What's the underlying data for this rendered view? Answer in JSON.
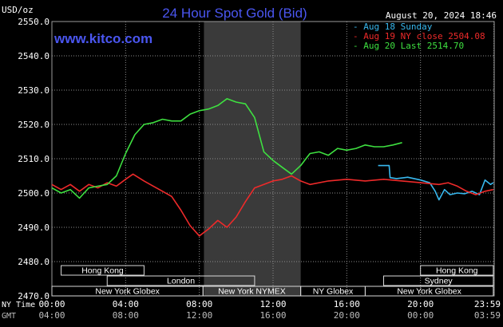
{
  "header": {
    "units": "USD/oz",
    "title": "24 Hour Spot Gold (Bid)",
    "datetime": "August 20, 2024 18:46",
    "watermark": "www.kitco.com"
  },
  "colors": {
    "background": "#000000",
    "grid": "#8c8c8c",
    "title": "#4a56f0",
    "watermark": "#4a56f0",
    "aug18": "#38b8ee",
    "aug19": "#ee2a2a",
    "aug20": "#3ee040",
    "panel_fill": "#ececec",
    "highlight": "#3a3a3a"
  },
  "chart_data": {
    "type": "line",
    "title": "24 Hour Spot Gold (Bid)",
    "ylabel": "USD/oz",
    "ylim": [
      2470,
      2550
    ],
    "yticks": [
      "2470.0",
      "2480.0",
      "2490.0",
      "2500.0",
      "2510.0",
      "2520.0",
      "2530.0",
      "2540.0",
      "2550.0"
    ],
    "xlim": [
      0,
      24
    ],
    "highlight_range": [
      8.25,
      13.5
    ],
    "x_rows": [
      {
        "label": "NY Time",
        "ticks": [
          "00:00",
          "04:00",
          "08:00",
          "12:00",
          "16:00",
          "20:00",
          "23:59"
        ]
      },
      {
        "label": "GMT",
        "ticks": [
          "04:00",
          "08:00",
          "12:00",
          "16:00",
          "20:00",
          "00:00",
          "03:59"
        ]
      }
    ],
    "sessions": [
      {
        "name": "Hong Kong",
        "start": 0.5,
        "end": 5.0,
        "row": 0
      },
      {
        "name": "Hong Kong",
        "start": 20.0,
        "end": 23.95,
        "row": 0
      },
      {
        "name": "London",
        "start": 3.0,
        "end": 11.0,
        "row": 1
      },
      {
        "name": "Sydney",
        "start": 18.0,
        "end": 23.95,
        "row": 1
      },
      {
        "name": "New York Globex",
        "start": 0.0,
        "end": 8.2,
        "row": 2
      },
      {
        "name": "New York NYMEX",
        "start": 8.2,
        "end": 13.5,
        "row": 2
      },
      {
        "name": "NY Globex",
        "start": 13.5,
        "end": 17.0,
        "row": 2
      },
      {
        "name": "New York Globex",
        "start": 17.0,
        "end": 23.95,
        "row": 2
      }
    ],
    "series": [
      {
        "name": "Aug 18 Sunday",
        "color": "#38b8ee",
        "x": [
          17.7,
          18.3,
          18.35,
          18.7,
          19.3,
          20.0,
          20.5,
          20.8,
          21.0,
          21.3,
          21.6,
          22.0,
          22.4,
          22.8,
          23.2,
          23.5,
          23.8,
          23.95
        ],
        "y": [
          2508.0,
          2508.0,
          2504.5,
          2504.2,
          2504.6,
          2503.8,
          2503.0,
          2500.5,
          2498.0,
          2501.0,
          2499.5,
          2500.0,
          2499.8,
          2500.5,
          2499.5,
          2503.8,
          2502.5,
          2503.0
        ]
      },
      {
        "name": "Aug 19 NY close 2504.08",
        "color": "#ee2a2a",
        "x": [
          0,
          0.5,
          1,
          1.5,
          2,
          2.5,
          3,
          3.5,
          4,
          4.4,
          5,
          5.5,
          6,
          6.5,
          7,
          7.5,
          8,
          8.5,
          9,
          9.5,
          10,
          10.5,
          11,
          11.5,
          12,
          12.5,
          13,
          13.5,
          14,
          15,
          16,
          17,
          18,
          19,
          20,
          21,
          21.5,
          22,
          22.5,
          23,
          23.5,
          23.95
        ],
        "y": [
          2502.5,
          2501.0,
          2502.5,
          2500.5,
          2502.5,
          2501.5,
          2503.0,
          2502.0,
          2504.0,
          2505.5,
          2503.5,
          2502.0,
          2500.5,
          2499.0,
          2495.0,
          2490.5,
          2487.5,
          2489.5,
          2492.0,
          2490.0,
          2493.0,
          2497.5,
          2501.5,
          2502.5,
          2503.5,
          2504.0,
          2505.0,
          2503.5,
          2502.5,
          2503.5,
          2504.0,
          2503.5,
          2504.0,
          2503.5,
          2503.0,
          2502.5,
          2503.0,
          2502.0,
          2500.5,
          2499.5,
          2500.5,
          2501.0
        ]
      },
      {
        "name": "Aug 20 Last 2514.70",
        "color": "#3ee040",
        "x": [
          0,
          0.5,
          1,
          1.5,
          2,
          2.5,
          3,
          3.5,
          4,
          4.5,
          5,
          5.5,
          6,
          6.5,
          7,
          7.5,
          8,
          8.5,
          9,
          9.5,
          10,
          10.5,
          11,
          11.5,
          12,
          12.5,
          13,
          13.5,
          14,
          14.5,
          15,
          15.5,
          16,
          16.5,
          17,
          17.5,
          18,
          18.5,
          19
        ],
        "y": [
          2501.5,
          2500.0,
          2501.0,
          2498.5,
          2501.5,
          2502.0,
          2502.5,
          2505.0,
          2511.5,
          2517.0,
          2520.0,
          2520.5,
          2521.5,
          2521.0,
          2521.0,
          2523.0,
          2524.0,
          2524.5,
          2525.5,
          2527.5,
          2526.5,
          2526.0,
          2522.0,
          2512.0,
          2509.5,
          2507.5,
          2505.5,
          2508.0,
          2511.5,
          2512.0,
          2511.0,
          2513.0,
          2512.5,
          2513.0,
          2514.0,
          2513.5,
          2513.5,
          2514.0,
          2514.7
        ]
      }
    ]
  }
}
